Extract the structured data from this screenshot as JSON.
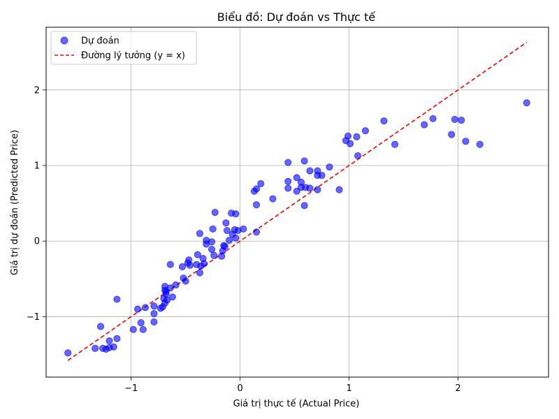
{
  "chart_data": {
    "type": "scatter",
    "title": "Biểu đồ: Dự đoán vs Thực tế",
    "xlabel": "Giá trị thực tế (Actual Price)",
    "ylabel": "Giá trị dự đoán (Predicted Price)",
    "xlim": [
      -1.78,
      2.83
    ],
    "ylim": [
      -1.8,
      2.83
    ],
    "xticks": [
      -1,
      0,
      1,
      2
    ],
    "yticks": [
      -1,
      0,
      1,
      2
    ],
    "xtick_labels": [
      "−1",
      "0",
      "1",
      "2"
    ],
    "ytick_labels": [
      "−1",
      "0",
      "1",
      "2"
    ],
    "grid": true,
    "legend_position": "top-left",
    "colors": {
      "points": "#0000ff",
      "ideal_line": "#ff0000"
    },
    "series": [
      {
        "name": "Dự đoán",
        "kind": "scatter",
        "points": [
          [
            -1.58,
            -1.48
          ],
          [
            -1.33,
            -1.42
          ],
          [
            -1.28,
            -1.13
          ],
          [
            -1.26,
            -1.42
          ],
          [
            -1.23,
            -1.43
          ],
          [
            -1.2,
            -1.41
          ],
          [
            -1.2,
            -1.32
          ],
          [
            -1.16,
            -1.4
          ],
          [
            -1.13,
            -1.29
          ],
          [
            -1.13,
            -0.77
          ],
          [
            -0.98,
            -1.17
          ],
          [
            -0.94,
            -0.9
          ],
          [
            -0.91,
            -1.08
          ],
          [
            -0.89,
            -1.17
          ],
          [
            -0.87,
            -0.88
          ],
          [
            -0.79,
            -0.96
          ],
          [
            -0.79,
            -1.07
          ],
          [
            -0.79,
            -0.86
          ],
          [
            -0.73,
            -0.89
          ],
          [
            -0.71,
            -0.87
          ],
          [
            -0.7,
            -0.76
          ],
          [
            -0.69,
            -0.82
          ],
          [
            -0.69,
            -0.6
          ],
          [
            -0.69,
            -0.65
          ],
          [
            -0.68,
            -0.67
          ],
          [
            -0.68,
            -0.7
          ],
          [
            -0.67,
            -0.78
          ],
          [
            -0.64,
            -0.31
          ],
          [
            -0.64,
            -0.62
          ],
          [
            -0.62,
            -0.74
          ],
          [
            -0.59,
            -0.58
          ],
          [
            -0.53,
            -0.34
          ],
          [
            -0.52,
            -0.49
          ],
          [
            -0.5,
            -0.53
          ],
          [
            -0.48,
            -0.29
          ],
          [
            -0.47,
            -0.25
          ],
          [
            -0.46,
            -0.32
          ],
          [
            -0.4,
            -0.31
          ],
          [
            -0.39,
            -0.18
          ],
          [
            -0.37,
            -0.42
          ],
          [
            -0.37,
            0.1
          ],
          [
            -0.36,
            -0.33
          ],
          [
            -0.34,
            -0.23
          ],
          [
            -0.33,
            -0.3
          ],
          [
            -0.31,
            0.01
          ],
          [
            -0.31,
            -0.04
          ],
          [
            -0.26,
            -0.11
          ],
          [
            -0.26,
            -0.01
          ],
          [
            -0.25,
            0.16
          ],
          [
            -0.24,
            -0.19
          ],
          [
            -0.23,
            0.38
          ],
          [
            -0.17,
            -0.2
          ],
          [
            -0.16,
            -0.13
          ],
          [
            -0.15,
            -0.06
          ],
          [
            -0.14,
            -0.07
          ],
          [
            -0.13,
            0.24
          ],
          [
            -0.12,
            0.14
          ],
          [
            -0.1,
            0.01
          ],
          [
            -0.08,
            0.37
          ],
          [
            -0.07,
            0.09
          ],
          [
            -0.05,
            0.15
          ],
          [
            -0.04,
            0.36
          ],
          [
            -0.04,
            0.04
          ],
          [
            -0.02,
            0.14
          ],
          [
            0.03,
            0.16
          ],
          [
            0.13,
            0.66
          ],
          [
            0.15,
            0.69
          ],
          [
            0.15,
            0.48
          ],
          [
            0.15,
            0.12
          ],
          [
            0.19,
            0.76
          ],
          [
            0.3,
            0.56
          ],
          [
            0.44,
            0.7
          ],
          [
            0.44,
            0.79
          ],
          [
            0.44,
            1.04
          ],
          [
            0.52,
            0.84
          ],
          [
            0.52,
            0.66
          ],
          [
            0.56,
            0.71
          ],
          [
            0.56,
            0.78
          ],
          [
            0.59,
            1.06
          ],
          [
            0.59,
            0.47
          ],
          [
            0.6,
            0.71
          ],
          [
            0.64,
            0.93
          ],
          [
            0.64,
            0.7
          ],
          [
            0.71,
            0.93
          ],
          [
            0.71,
            0.68
          ],
          [
            0.71,
            0.87
          ],
          [
            0.75,
            0.87
          ],
          [
            0.82,
            0.98
          ],
          [
            0.91,
            0.68
          ],
          [
            0.97,
            1.33
          ],
          [
            0.99,
            1.39
          ],
          [
            1.01,
            1.29
          ],
          [
            1.07,
            1.38
          ],
          [
            1.08,
            1.13
          ],
          [
            1.15,
            1.46
          ],
          [
            1.32,
            1.59
          ],
          [
            1.42,
            1.28
          ],
          [
            1.69,
            1.54
          ],
          [
            1.77,
            1.62
          ],
          [
            1.94,
            1.41
          ],
          [
            1.97,
            1.61
          ],
          [
            2.03,
            1.6
          ],
          [
            2.07,
            1.32
          ],
          [
            2.2,
            1.28
          ],
          [
            2.63,
            1.83
          ]
        ]
      },
      {
        "name": "Đường lý tưởng (y = x)",
        "kind": "line",
        "points": [
          [
            -1.58,
            -1.58
          ],
          [
            2.63,
            2.63
          ]
        ]
      }
    ]
  }
}
